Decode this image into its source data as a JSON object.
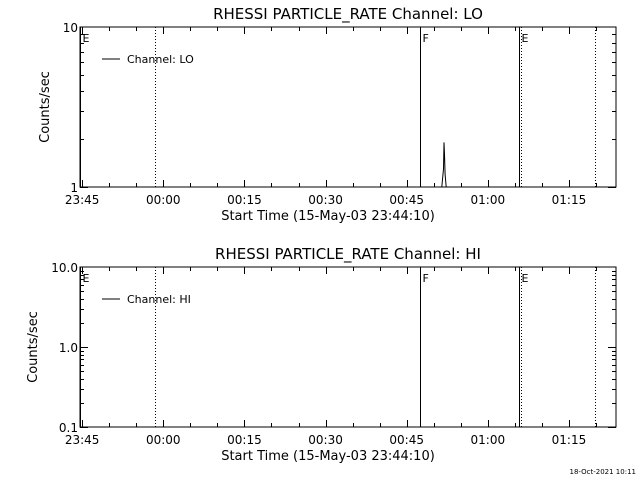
{
  "chart_data": [
    {
      "type": "line",
      "title": "RHESSI PARTICLE_RATE Channel: LO",
      "xlabel": "Start Time (15-May-03 23:44:10)",
      "ylabel": "Counts/sec",
      "yscale": "log",
      "ylim": [
        1,
        10
      ],
      "xlim_minutes": [
        -15.4,
        83.7
      ],
      "x_tick_labels": [
        "23:45",
        "00:00",
        "00:15",
        "00:30",
        "00:45",
        "01:00",
        "01:15"
      ],
      "x_tick_minutes": [
        -15,
        0,
        15,
        30,
        45,
        60,
        75
      ],
      "y_tick_labels": [
        "1",
        "10"
      ],
      "y_tick_values": [
        1,
        10
      ],
      "legend": {
        "position": "top-left",
        "label": "Channel: LO"
      },
      "series": [
        {
          "name": "Channel: LO",
          "x_minutes": [
            51.5,
            51.8,
            51.9,
            52.0,
            52.1,
            52.3
          ],
          "values": [
            1,
            1.3,
            1.9,
            1.6,
            1.2,
            1
          ]
        }
      ],
      "markers": [
        {
          "label": "E",
          "minute": -15.4,
          "style": "solid"
        },
        {
          "label": "",
          "minute": -1.6,
          "style": "dotted"
        },
        {
          "label": "F",
          "minute": 47.5,
          "style": "solid"
        },
        {
          "label": "E",
          "minute": 65.8,
          "style": "solid"
        },
        {
          "label": "",
          "minute": 66.2,
          "style": "dotted"
        },
        {
          "label": "",
          "minute": 79.8,
          "style": "dotted"
        }
      ]
    },
    {
      "type": "line",
      "title": "RHESSI PARTICLE_RATE Channel: HI",
      "xlabel": "Start Time (15-May-03 23:44:10)",
      "ylabel": "Counts/sec",
      "yscale": "log",
      "ylim": [
        0.1,
        10
      ],
      "xlim_minutes": [
        -15.4,
        83.7
      ],
      "x_tick_labels": [
        "23:45",
        "00:00",
        "00:15",
        "00:30",
        "00:45",
        "01:00",
        "01:15"
      ],
      "x_tick_minutes": [
        -15,
        0,
        15,
        30,
        45,
        60,
        75
      ],
      "y_tick_labels": [
        "0.1",
        "1.0",
        "10.0"
      ],
      "y_tick_values": [
        0.1,
        1,
        10
      ],
      "legend": {
        "position": "top-left",
        "label": "Channel: HI"
      },
      "series": [
        {
          "name": "Channel: HI",
          "x_minutes": [],
          "values": []
        }
      ],
      "markers": [
        {
          "label": "E",
          "minute": -15.4,
          "style": "solid"
        },
        {
          "label": "",
          "minute": -1.6,
          "style": "dotted"
        },
        {
          "label": "F",
          "minute": 47.5,
          "style": "solid"
        },
        {
          "label": "E",
          "minute": 65.8,
          "style": "solid"
        },
        {
          "label": "",
          "minute": 66.2,
          "style": "dotted"
        },
        {
          "label": "",
          "minute": 79.8,
          "style": "dotted"
        }
      ]
    }
  ],
  "footer": {
    "timestamp": "18-Oct-2021 10:11"
  }
}
